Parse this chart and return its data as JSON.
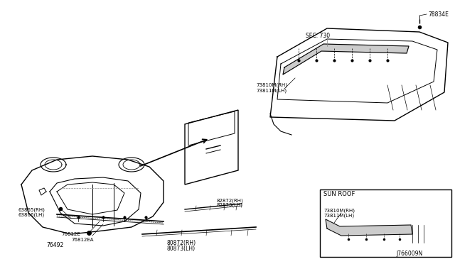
{
  "title": "",
  "bg_color": "#ffffff",
  "line_color": "#000000",
  "light_gray": "#888888",
  "diagram_color": "#333333",
  "labels": {
    "sec730": "SEC. 730",
    "part_78834E": "78834E",
    "part_73810M_RH": "73810M(RH)",
    "part_73811M_LH": "73811M(LH)",
    "part_63865_RH": "63865(RH)",
    "part_63866_LH": "63866(LH)",
    "part_76492": "76492",
    "part_76812E": "76812E",
    "part_76812EA": "76812EA",
    "part_82872_RH": "82872(RH)",
    "part_82873_LH": "82873(LH)",
    "part_80872_RH": "80872(RH)",
    "part_80873_LH": "80873(LH)",
    "sun_roof": "SUN ROOF",
    "sun_73810M_RH": "73810M(RH)",
    "sun_73811M_LH": "73811M(LH)",
    "diagram_id": "J766009N"
  },
  "figsize": [
    6.4,
    3.72
  ],
  "dpi": 100
}
